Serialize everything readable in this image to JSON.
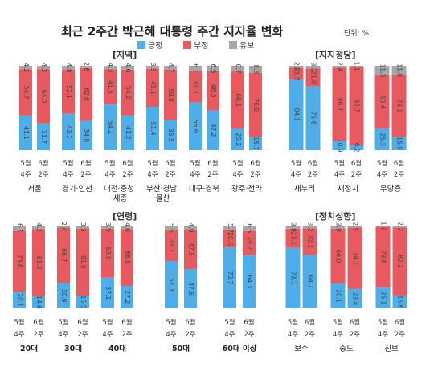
{
  "title": "최근 2주간 박근혜 대통령 주간 지지율 변화",
  "unit": "단위: %",
  "colors": {
    "positive": "#4daee9",
    "negative": "#e85a5f",
    "reserved": "#a6a6a6"
  },
  "legend": [
    {
      "label": "긍정",
      "color": "#4daee9"
    },
    {
      "label": "부정",
      "color": "#e85a5f"
    },
    {
      "label": "유보",
      "color": "#a6a6a6"
    }
  ],
  "period_labels": {
    "a_top": "5월",
    "a_bottom": "4주",
    "b_top": "6월",
    "b_bottom": "2주"
  },
  "chart_data": [
    {
      "type": "stacked-bar",
      "title": "[지역]",
      "series_names": [
        "긍정",
        "부정",
        "유보"
      ],
      "groups": [
        {
          "label": "서울",
          "bars": [
            [
              41.1,
              54.7,
              4.2
            ],
            [
              31.7,
              64.0,
              4.3
            ]
          ]
        },
        {
          "label": "경기·인천",
          "bars": [
            [
              43.1,
              52.1,
              4.8
            ],
            [
              34.8,
              62.6,
              2.6
            ]
          ]
        },
        {
          "label": "대전·충청·세종",
          "bars": [
            [
              54.2,
              41.5,
              4.3
            ],
            [
              41.2,
              54.2,
              4.6
            ]
          ]
        },
        {
          "label": "부산·경남·울산",
          "bars": [
            [
              51.4,
              45.1,
              3.5
            ],
            [
              35.5,
              59.8,
              4.7
            ]
          ]
        },
        {
          "label": "대구·경북",
          "bars": [
            [
              56.6,
              37.3,
              6.1
            ],
            [
              47.2,
              46.3,
              6.5
            ]
          ]
        },
        {
          "label": "광주·전라",
          "bars": [
            [
              25.2,
              68.1,
              6.7
            ],
            [
              15.7,
              76.0,
              8.3
            ]
          ]
        }
      ]
    },
    {
      "type": "stacked-bar",
      "title": "[지지정당]",
      "series_names": [
        "긍정",
        "부정",
        "유보"
      ],
      "groups": [
        {
          "label": "새누리",
          "bars": [
            [
              84.1,
              13.7,
              2.2
            ],
            [
              75.8,
              21.0,
              3.2
            ]
          ]
        },
        {
          "label": "새정치",
          "bars": [
            [
              10.9,
              86.7,
              2.4
            ],
            [
              6.2,
              92.7,
              1.1
            ]
          ]
        },
        {
          "label": "무당층",
          "bars": [
            [
              25.3,
              63.4,
              11.3
            ],
            [
              15.9,
              73.1,
              11.0
            ]
          ]
        }
      ]
    },
    {
      "type": "stacked-bar",
      "title": "[연령]",
      "series_names": [
        "긍정",
        "부정",
        "유보"
      ],
      "groups": [
        {
          "label": "20대",
          "bars": [
            [
              20.1,
              73.8,
              6.1
            ],
            [
              14.6,
              81.2,
              4.2
            ]
          ]
        },
        {
          "label": "30대",
          "bars": [
            [
              30.9,
              66.7,
              2.4
            ],
            [
              15.5,
              81.0,
              3.5
            ]
          ]
        },
        {
          "label": "40대",
          "bars": [
            [
              37.1,
              59.0,
              3.9
            ],
            [
              27.2,
              68.8,
              4.0
            ]
          ]
        },
        {
          "label": "50대",
          "bars": [
            [
              57.3,
              37.1,
              5.6
            ],
            [
              47.6,
              47.5,
              4.9
            ]
          ]
        },
        {
          "label": "60대 이상",
          "bars": [
            [
              73.7,
              20.6,
              5.7
            ],
            [
              64.3,
              29.2,
              6.5
            ]
          ]
        }
      ]
    },
    {
      "type": "stacked-bar",
      "title": "[정치성향]",
      "series_names": [
        "긍정",
        "부정",
        "유보"
      ],
      "groups": [
        {
          "label": "보수",
          "bars": [
            [
              73.1,
              23.1,
              3.8
            ],
            [
              64.7,
              32.1,
              3.2
            ]
          ]
        },
        {
          "label": "중도",
          "bars": [
            [
              30.1,
              66.0,
              3.9
            ],
            [
              23.4,
              74.1,
              2.5
            ]
          ]
        },
        {
          "label": "진보",
          "bars": [
            [
              25.1,
              73.6,
              1.3
            ],
            [
              15.6,
              82.2,
              2.2
            ]
          ]
        }
      ]
    }
  ]
}
